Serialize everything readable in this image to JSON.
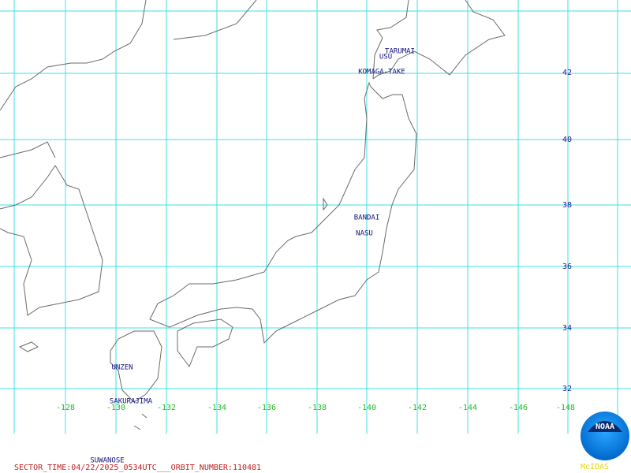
{
  "map": {
    "latitude_labels": [
      "42",
      "40",
      "38",
      "36",
      "34",
      "32"
    ],
    "longitude_labels": [
      "-128",
      "-130",
      "-132",
      "-134",
      "-136",
      "-138",
      "-140",
      "-142",
      "-144",
      "-146",
      "-148"
    ],
    "volcanoes": [
      "TARUMAI",
      "USU",
      "KOMAGA-TAKE",
      "BANDAI",
      "NASU",
      "UNZEN",
      "SAKURAJIMA",
      "SUWANOSE"
    ]
  },
  "footer": {
    "sector_line": "SECTOR_TIME:04/22/2025_0534UTC___ORBIT_NUMBER:110481"
  },
  "logo": {
    "text": "NOAA",
    "caption": "McIDAS"
  }
}
